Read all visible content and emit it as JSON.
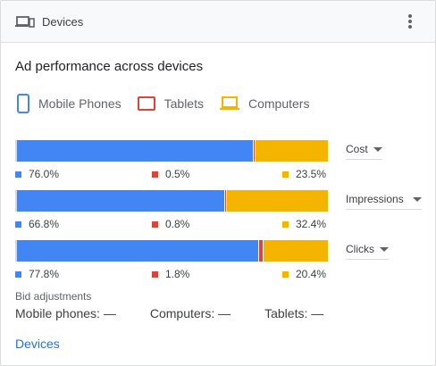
{
  "header": {
    "title": "Devices",
    "icon": "devices-icon",
    "menu_icon": "more-vert-icon"
  },
  "subtitle": "Ad performance across devices",
  "legend": [
    {
      "label": "Mobile Phones",
      "icon": "mobile-phone-icon",
      "color": "#4285f4"
    },
    {
      "label": "Tablets",
      "icon": "tablet-icon",
      "color": "#db4437"
    },
    {
      "label": "Computers",
      "icon": "computer-icon",
      "color": "#f4b400"
    }
  ],
  "metrics": [
    {
      "name": "Cost",
      "values": [
        76.0,
        0.5,
        23.5
      ],
      "labels": [
        "76.0%",
        "0.5%",
        "23.5%"
      ]
    },
    {
      "name": "Impressions",
      "values": [
        66.8,
        0.8,
        32.4
      ],
      "labels": [
        "66.8%",
        "0.8%",
        "32.4%"
      ]
    },
    {
      "name": "Clicks",
      "values": [
        77.8,
        1.8,
        20.4
      ],
      "labels": [
        "77.8%",
        "1.8%",
        "20.4%"
      ]
    }
  ],
  "bid_adjustments": {
    "label": "Bid adjustments",
    "mobile": "Mobile phones: —",
    "computers": "Computers: —",
    "tablets": "Tablets: —"
  },
  "footer_link": "Devices"
}
